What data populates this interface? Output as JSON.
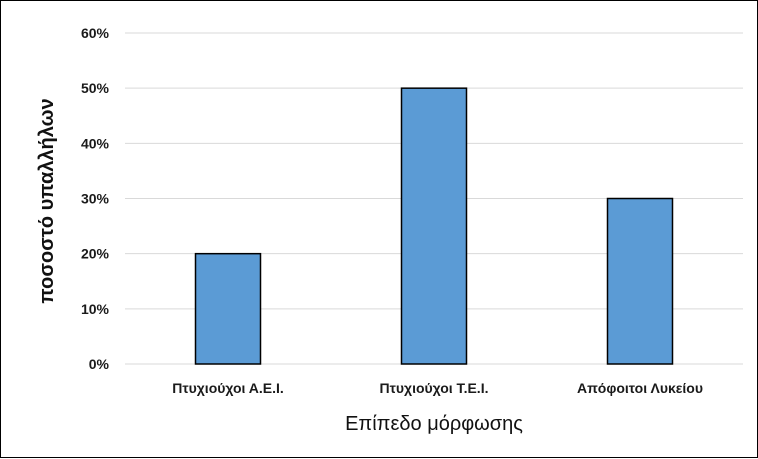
{
  "chart_data": {
    "type": "bar",
    "categories": [
      "Πτυχιούχοι Α.Ε.Ι.",
      "Πτυχιούχοι Τ.Ε.Ι.",
      "Απόφοιτοι Λυκείου"
    ],
    "values": [
      20,
      50,
      30
    ],
    "value_unit": "%",
    "xlabel": "Επίπεδο μόρφωσης",
    "ylabel": "ποσοστό υπαλλήλων",
    "ylim": [
      0,
      60
    ],
    "yticks": [
      "0%",
      "10%",
      "20%",
      "30%",
      "40%",
      "50%",
      "60%"
    ],
    "grid": true,
    "legend": "none",
    "colors": {
      "bar_fill": "#5b9bd5",
      "bar_stroke": "#000000",
      "grid": "#d9d9d9"
    }
  }
}
